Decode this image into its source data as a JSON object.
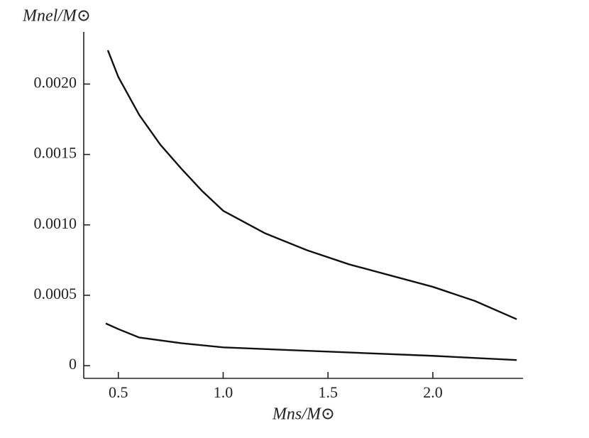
{
  "chart_data": {
    "type": "line",
    "xlabel": "Mns/M⊙",
    "ylabel": "Mnel/M⊙",
    "xlim": [
      0.335,
      2.43
    ],
    "ylim": [
      -9e-05,
      0.00237
    ],
    "xticks": [
      0.5,
      {
        "value": 1.0,
        "label": "1.0"
      },
      1.5,
      {
        "value": 2.0,
        "label": "2.0"
      }
    ],
    "yticks": [
      0,
      {
        "value": 0.0005,
        "label": "0.0005"
      },
      {
        "value": 0.001,
        "label": "0.0010"
      },
      {
        "value": 0.0015,
        "label": "0.0015"
      },
      {
        "value": 0.002,
        "label": "0.0020"
      }
    ],
    "series": [
      {
        "color": "#111111",
        "x": [
          0.45,
          0.5,
          0.6,
          0.7,
          0.8,
          0.9,
          1.0,
          1.2,
          1.4,
          1.6,
          1.8,
          2.0,
          2.2,
          2.4
        ],
        "values": [
          0.00224,
          0.00205,
          0.00178,
          0.00157,
          0.0014,
          0.00124,
          0.0011,
          0.00094,
          0.00082,
          0.00072,
          0.00064,
          0.00056,
          0.00046,
          0.00033
        ]
      },
      {
        "color": "#111111",
        "x": [
          0.44,
          0.5,
          0.6,
          0.8,
          1.0,
          1.5,
          2.0,
          2.4
        ],
        "values": [
          0.0003,
          0.00026,
          0.0002,
          0.00016,
          0.00013,
          0.0001,
          7e-05,
          4e-05
        ]
      }
    ]
  }
}
